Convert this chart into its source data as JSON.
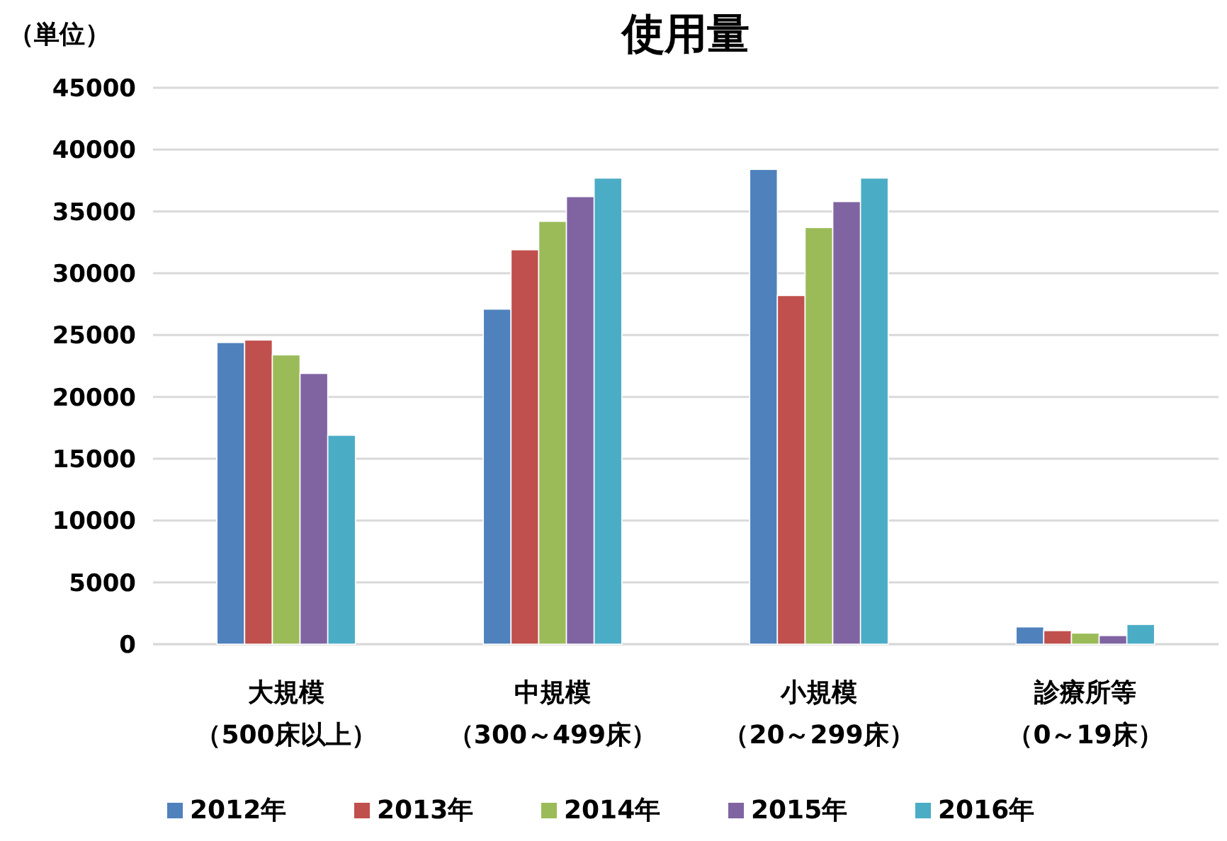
{
  "chart_data": {
    "type": "bar",
    "title": "使用量",
    "ylabel": "（単位）",
    "categories": [
      "大規模（500床以上）",
      "中規模（300～499床）",
      "小規模（20～299床）",
      "診療所等（0～19床）"
    ],
    "series": [
      {
        "name": "2012年",
        "color": "#4f81bd",
        "values": [
          24400,
          27100,
          38400,
          1400
        ]
      },
      {
        "name": "2013年",
        "color": "#c0504d",
        "values": [
          24600,
          31900,
          28200,
          1100
        ]
      },
      {
        "name": "2014年",
        "color": "#9bbb59",
        "values": [
          23400,
          34200,
          33700,
          900
        ]
      },
      {
        "name": "2015年",
        "color": "#8064a2",
        "values": [
          21900,
          36200,
          35800,
          700
        ]
      },
      {
        "name": "2016年",
        "color": "#4bacc6",
        "values": [
          16900,
          37700,
          37700,
          1600
        ]
      }
    ],
    "ylim": [
      0,
      45000
    ],
    "yticks": [
      0,
      5000,
      10000,
      15000,
      20000,
      25000,
      30000,
      35000,
      40000,
      45000
    ],
    "grid": "y",
    "legend": "bottom"
  }
}
